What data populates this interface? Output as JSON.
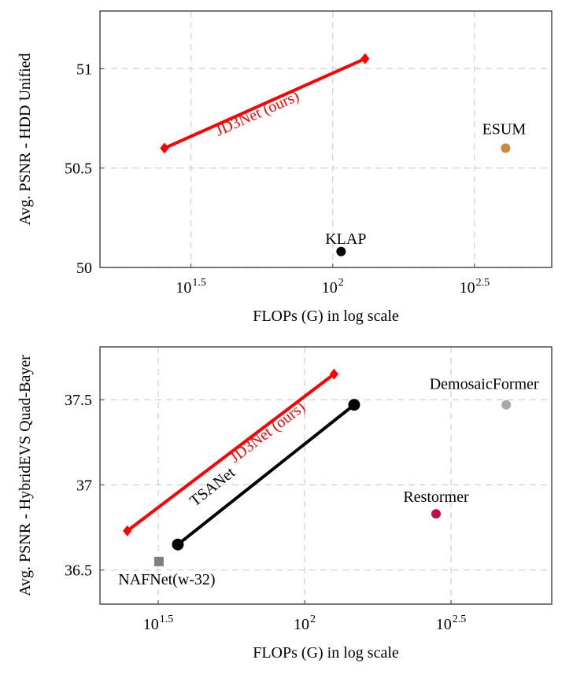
{
  "chart_data": [
    {
      "type": "scatter",
      "xlabel": "FLOPs (G) in log scale",
      "ylabel": "Avg. PSNR - HDD Unified",
      "xscale": "log",
      "xlim": [
        15.1,
        592
      ],
      "ylim": [
        50,
        51.29
      ],
      "xticks": [
        {
          "base": "10",
          "exp": "1.5",
          "value": 31.62
        },
        {
          "base": "10",
          "exp": "2",
          "value": 100
        },
        {
          "base": "10",
          "exp": "2.5",
          "value": 316.2
        }
      ],
      "yticks": [
        {
          "label": "50",
          "value": 50
        },
        {
          "label": "50.5",
          "value": 50.5
        },
        {
          "label": "51",
          "value": 51
        }
      ],
      "grid": true,
      "series": [
        {
          "name": "JD3Net (ours)",
          "color": "#ff0000",
          "marker": "diamond",
          "line": true,
          "points": [
            [
              25.5,
              50.6
            ],
            [
              130,
              51.05
            ]
          ]
        },
        {
          "name": "ESUM",
          "color": "#c88a3c",
          "marker": "circle",
          "line": false,
          "points": [
            [
              407,
              50.6
            ]
          ]
        },
        {
          "name": "KLAP",
          "color": "#000000",
          "marker": "circle",
          "line": false,
          "points": [
            [
              107,
              50.08
            ]
          ]
        }
      ]
    },
    {
      "type": "scatter",
      "xlabel": "FLOPs (G) in log scale",
      "ylabel": "Avg. PSNR - HybridEVS Quad-Bayer",
      "xscale": "log",
      "xlim": [
        20,
        698
      ],
      "ylim": [
        36.3,
        37.81
      ],
      "xticks": [
        {
          "base": "10",
          "exp": "1.5",
          "value": 31.62
        },
        {
          "base": "10",
          "exp": "2",
          "value": 100
        },
        {
          "base": "10",
          "exp": "2.5",
          "value": 316.2
        }
      ],
      "yticks": [
        {
          "label": "36.5",
          "value": 36.5
        },
        {
          "label": "37",
          "value": 37
        },
        {
          "label": "37.5",
          "value": 37.5
        }
      ],
      "grid": true,
      "series": [
        {
          "name": "JD3Net (ours)",
          "color": "#ff0000",
          "marker": "diamond",
          "line": true,
          "points": [
            [
              24.8,
              36.73
            ],
            [
              126,
              37.65
            ]
          ]
        },
        {
          "name": "TSANet",
          "color": "#000000",
          "marker": "circle",
          "line": true,
          "points": [
            [
              36.9,
              36.65
            ],
            [
              147.6,
              37.47
            ]
          ]
        },
        {
          "name": "NAFNet(w-32)",
          "color": "#808080",
          "marker": "square",
          "line": false,
          "points": [
            [
              31.8,
              36.55
            ]
          ]
        },
        {
          "name": "Restormer",
          "color": "#c0104a",
          "marker": "circle",
          "line": false,
          "points": [
            [
              281,
              36.83
            ]
          ]
        },
        {
          "name": "DemosaicFormer",
          "color": "#a8a8a8",
          "marker": "circle",
          "line": false,
          "points": [
            [
              488,
              37.47
            ]
          ]
        }
      ]
    }
  ]
}
